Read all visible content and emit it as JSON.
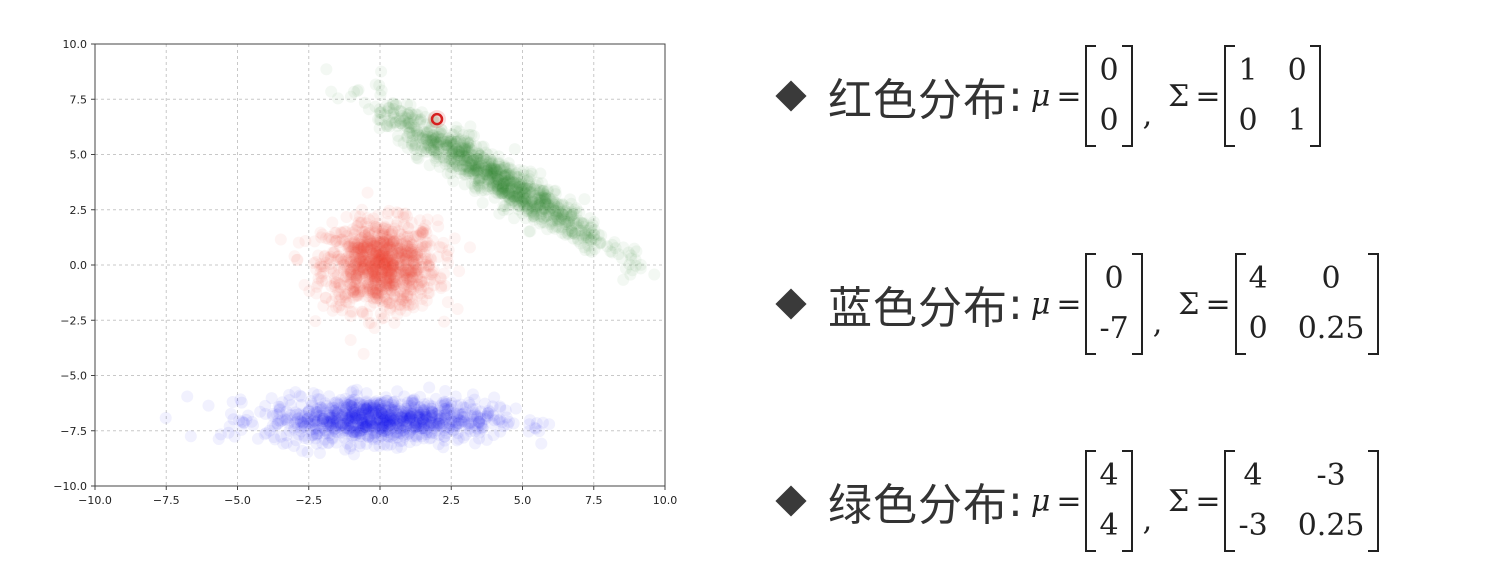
{
  "chart_data": {
    "type": "scatter",
    "xlim": [
      -10,
      10
    ],
    "ylim": [
      -10,
      10
    ],
    "x_ticks": [
      "−10.0",
      "−7.5",
      "−5.0",
      "−2.5",
      "0.0",
      "2.5",
      "5.0",
      "7.5",
      "10.0"
    ],
    "y_ticks": [
      "−10.0",
      "−7.5",
      "−5.0",
      "−2.5",
      "0.0",
      "2.5",
      "5.0",
      "7.5",
      "10.0"
    ],
    "grid": true,
    "series": [
      {
        "color": "#e8432e",
        "mean": [
          0,
          0
        ],
        "cov": [
          [
            1,
            0
          ],
          [
            0,
            1
          ]
        ],
        "count": 1000
      },
      {
        "color": "#1414f0",
        "mean": [
          0,
          -7
        ],
        "cov": [
          [
            4,
            0
          ],
          [
            0,
            0.25
          ]
        ],
        "count": 1000
      },
      {
        "color": "#2e8b2e",
        "mean": [
          4,
          4
        ],
        "cov": [
          [
            4,
            -3
          ],
          [
            -3,
            0.25
          ]
        ],
        "count": 1000
      }
    ],
    "highlight_point": {
      "x": 2,
      "y": 6.6,
      "color": "#d62020"
    }
  },
  "formulas": [
    {
      "label": "红色分布",
      "colon": ":",
      "mu_symbol": "μ",
      "equals": "=",
      "mu": [
        "0",
        "0"
      ],
      "comma": ",",
      "sigma_symbol": "Σ",
      "sigma": [
        [
          "1",
          "0"
        ],
        [
          "0",
          "1"
        ]
      ]
    },
    {
      "label": "蓝色分布",
      "colon": ":",
      "mu_symbol": "μ",
      "equals": "=",
      "mu": [
        "0",
        "-7"
      ],
      "comma": ",",
      "sigma_symbol": "Σ",
      "sigma": [
        [
          "4",
          "0"
        ],
        [
          "0",
          "0.25"
        ]
      ]
    },
    {
      "label": "绿色分布",
      "colon": ":",
      "mu_symbol": "μ",
      "equals": "=",
      "mu": [
        "4",
        "4"
      ],
      "comma": ",",
      "sigma_symbol": "Σ",
      "sigma": [
        [
          "4",
          "-3"
        ],
        [
          "-3",
          "0.25"
        ]
      ]
    }
  ]
}
